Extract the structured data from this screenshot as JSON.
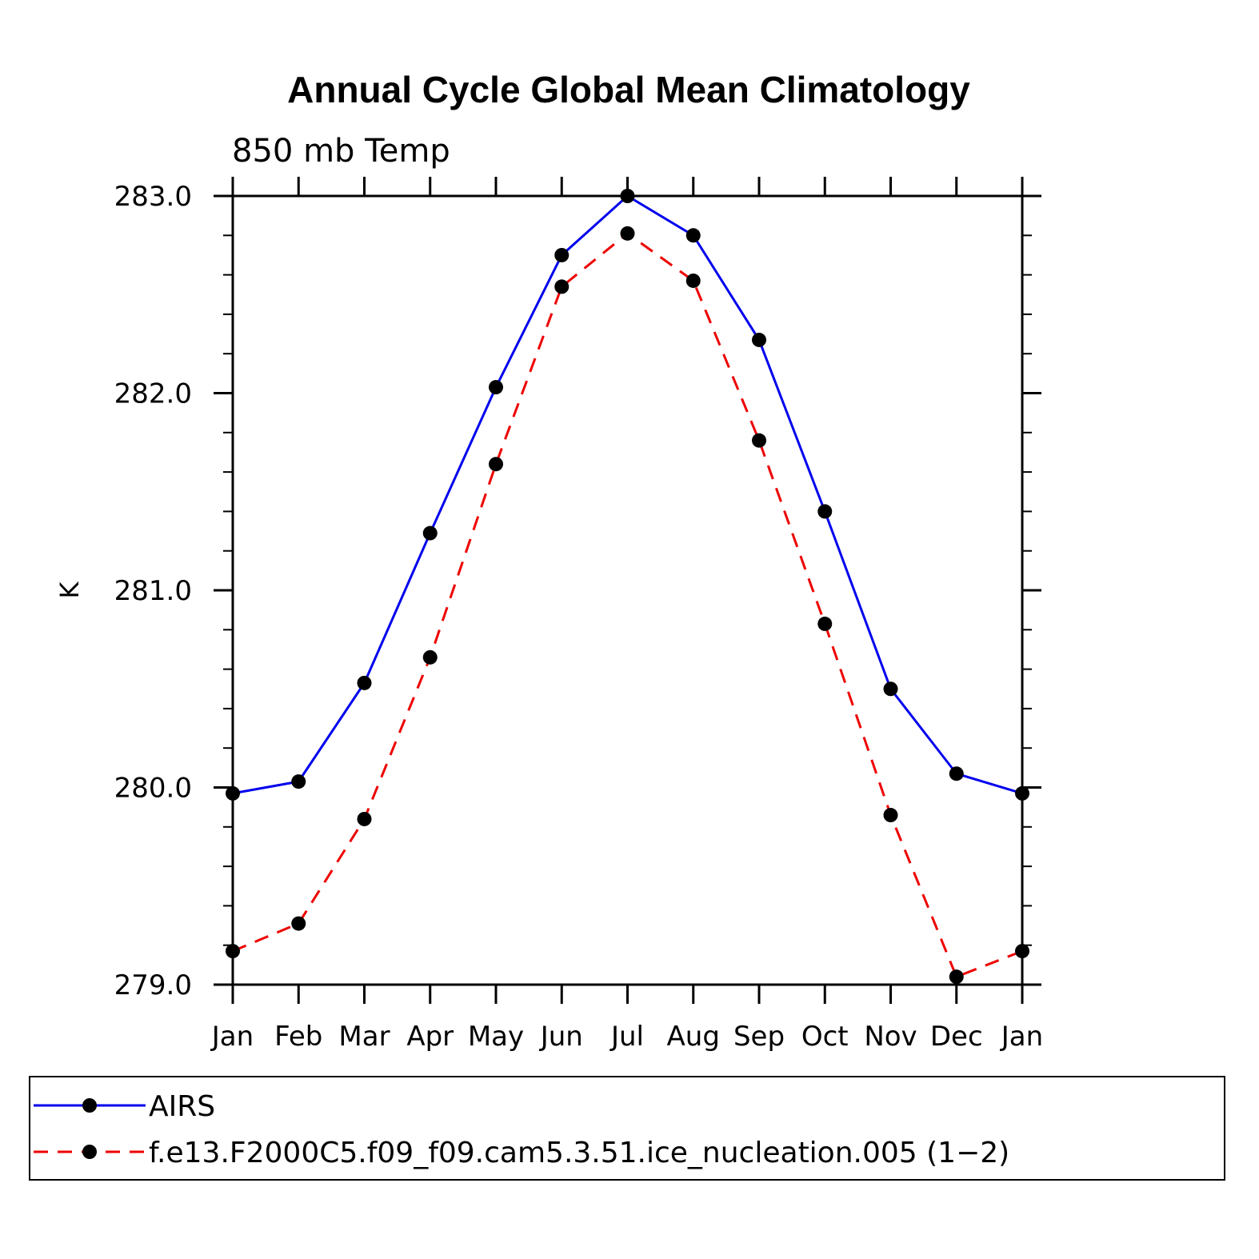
{
  "chart_data": {
    "type": "line",
    "title": "Annual Cycle Global Mean Climatology",
    "subtitle": "850 mb Temp",
    "xlabel": "",
    "ylabel": "K",
    "categories": [
      "Jan",
      "Feb",
      "Mar",
      "Apr",
      "May",
      "Jun",
      "Jul",
      "Aug",
      "Sep",
      "Oct",
      "Nov",
      "Dec",
      "Jan"
    ],
    "ylim": [
      279.0,
      283.0
    ],
    "yticks": [
      "279.0",
      "280.0",
      "281.0",
      "282.0",
      "283.0"
    ],
    "series": [
      {
        "name": "AIRS",
        "color": "#0000ee",
        "dash": "solid",
        "values": [
          279.97,
          280.03,
          280.53,
          281.29,
          282.03,
          282.7,
          283.0,
          282.8,
          282.27,
          281.4,
          280.5,
          280.07,
          279.97
        ]
      },
      {
        "name": "f.e13.F2000C5.f09_f09.cam5.3.51.ice_nucleation.005 (1−2)",
        "color": "#ee0000",
        "dash": "dashed",
        "values": [
          279.17,
          279.31,
          279.84,
          280.66,
          281.64,
          282.54,
          282.81,
          282.57,
          281.76,
          280.83,
          279.86,
          279.04,
          279.17
        ]
      }
    ],
    "legend_position": "bottom",
    "grid": false
  }
}
